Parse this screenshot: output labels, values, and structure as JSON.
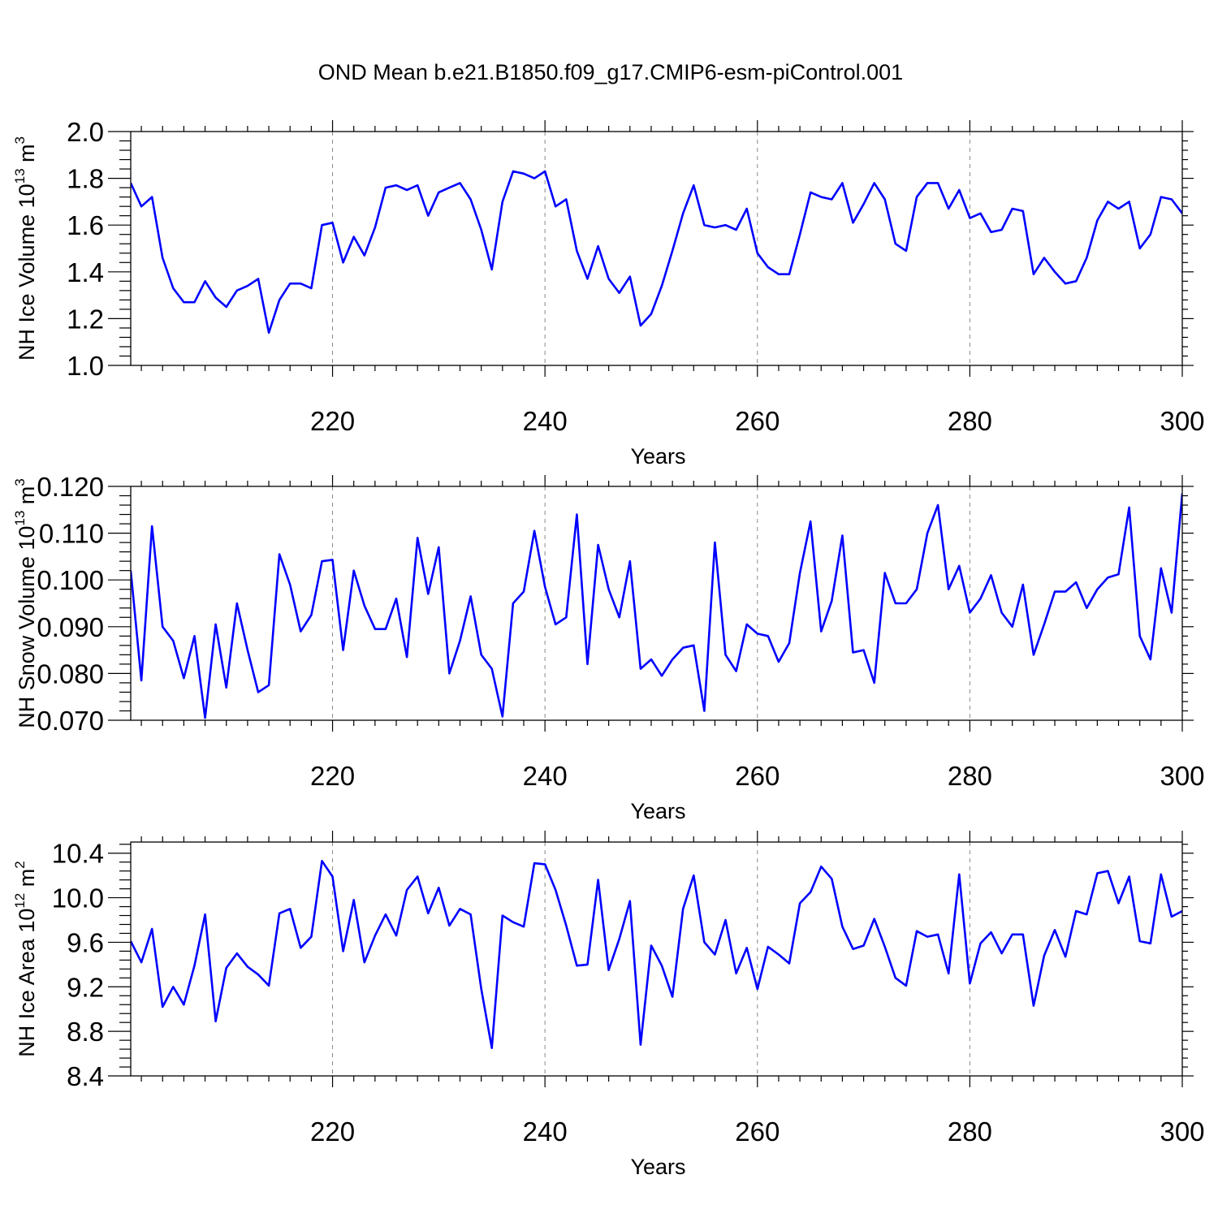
{
  "figure_title": "OND Mean b.e21.B1850.f09_g17.CMIP6-esm-piControl.001",
  "colors": {
    "line": "#0000ff",
    "grid": "#888888",
    "axis": "#000000"
  },
  "chart_data": [
    {
      "type": "line",
      "title": "OND Mean b.e21.B1850.f09_g17.CMIP6-esm-piControl.001",
      "xlabel": "Years",
      "ylabel": "NH Ice Volume 10",
      "ylabel_superscript": "13",
      "ylabel_unit": " m",
      "ylabel_unit_superscript": "3",
      "xlim": [
        201,
        300
      ],
      "ylim": [
        1.0,
        2.0
      ],
      "yticks": [
        "1.0",
        "1.2",
        "1.4",
        "1.6",
        "1.8",
        "2.0"
      ],
      "xticks": [
        "220",
        "240",
        "260",
        "280",
        "300"
      ],
      "x_start": 201,
      "series": [
        {
          "name": "NH Ice Volume",
          "values": [
            1.78,
            1.68,
            1.72,
            1.46,
            1.33,
            1.27,
            1.27,
            1.36,
            1.29,
            1.25,
            1.32,
            1.34,
            1.37,
            1.14,
            1.28,
            1.35,
            1.35,
            1.33,
            1.6,
            1.61,
            1.44,
            1.55,
            1.47,
            1.59,
            1.76,
            1.77,
            1.75,
            1.77,
            1.64,
            1.74,
            1.76,
            1.78,
            1.71,
            1.58,
            1.41,
            1.7,
            1.83,
            1.82,
            1.8,
            1.83,
            1.68,
            1.71,
            1.49,
            1.37,
            1.51,
            1.37,
            1.31,
            1.38,
            1.17,
            1.22,
            1.34,
            1.49,
            1.65,
            1.77,
            1.6,
            1.59,
            1.6,
            1.58,
            1.67,
            1.48,
            1.42,
            1.39,
            1.39,
            1.56,
            1.74,
            1.72,
            1.71,
            1.78,
            1.61,
            1.69,
            1.78,
            1.71,
            1.52,
            1.49,
            1.72,
            1.78,
            1.78,
            1.67,
            1.75,
            1.63,
            1.65,
            1.57,
            1.58,
            1.67,
            1.66,
            1.39,
            1.46,
            1.4,
            1.35,
            1.36,
            1.46,
            1.62,
            1.7,
            1.67,
            1.7,
            1.5,
            1.56,
            1.72,
            1.71,
            1.65
          ]
        }
      ]
    },
    {
      "type": "line",
      "xlabel": "Years",
      "ylabel": "NH Snow Volume 10",
      "ylabel_superscript": "13",
      "ylabel_unit": " m",
      "ylabel_unit_superscript": "3",
      "xlim": [
        201,
        300
      ],
      "ylim": [
        0.07,
        0.12
      ],
      "yticks": [
        "0.070",
        "0.080",
        "0.090",
        "0.100",
        "0.110",
        "0.120"
      ],
      "xticks": [
        "220",
        "240",
        "260",
        "280",
        "300"
      ],
      "x_start": 201,
      "series": [
        {
          "name": "NH Snow Volume",
          "values": [
            0.102,
            0.0785,
            0.1115,
            0.09,
            0.087,
            0.079,
            0.088,
            0.0705,
            0.0905,
            0.077,
            0.095,
            0.085,
            0.076,
            0.0775,
            0.1055,
            0.099,
            0.089,
            0.0925,
            0.104,
            0.1043,
            0.085,
            0.102,
            0.0945,
            0.0895,
            0.0895,
            0.096,
            0.0835,
            0.109,
            0.097,
            0.107,
            0.08,
            0.087,
            0.0965,
            0.084,
            0.081,
            0.0708,
            0.095,
            0.0975,
            0.1105,
            0.0985,
            0.0905,
            0.092,
            0.114,
            0.082,
            0.1075,
            0.098,
            0.092,
            0.104,
            0.081,
            0.083,
            0.0795,
            0.083,
            0.0855,
            0.086,
            0.072,
            0.108,
            0.084,
            0.0805,
            0.0905,
            0.0885,
            0.088,
            0.0825,
            0.0865,
            0.1015,
            0.1125,
            0.089,
            0.0955,
            0.1095,
            0.0845,
            0.085,
            0.078,
            0.1015,
            0.095,
            0.095,
            0.098,
            0.11,
            0.116,
            0.098,
            0.103,
            0.093,
            0.096,
            0.101,
            0.093,
            0.09,
            0.099,
            0.084,
            0.0905,
            0.0975,
            0.0975,
            0.0995,
            0.094,
            0.098,
            0.1005,
            0.1012,
            0.1155,
            0.088,
            0.083,
            0.1025,
            0.093,
            0.1185
          ]
        }
      ]
    },
    {
      "type": "line",
      "xlabel": "Years",
      "ylabel": "NH Ice Area 10",
      "ylabel_superscript": "12",
      "ylabel_unit": " m",
      "ylabel_unit_superscript": "2",
      "xlim": [
        201,
        300
      ],
      "ylim": [
        8.4,
        10.5
      ],
      "yticks": [
        "8.4",
        "8.8",
        "9.2",
        "9.6",
        "10.0",
        "10.4"
      ],
      "xticks": [
        "220",
        "240",
        "260",
        "280",
        "300"
      ],
      "x_start": 201,
      "series": [
        {
          "name": "NH Ice Area",
          "values": [
            9.61,
            9.42,
            9.72,
            9.02,
            9.2,
            9.04,
            9.39,
            9.85,
            8.89,
            9.37,
            9.5,
            9.38,
            9.31,
            9.21,
            9.86,
            9.9,
            9.55,
            9.65,
            10.33,
            10.19,
            9.52,
            9.98,
            9.42,
            9.66,
            9.85,
            9.66,
            10.07,
            10.19,
            9.86,
            10.09,
            9.75,
            9.9,
            9.85,
            9.18,
            8.65,
            9.84,
            9.78,
            9.74,
            10.31,
            10.3,
            10.07,
            9.75,
            9.39,
            9.4,
            10.16,
            9.35,
            9.63,
            9.97,
            8.68,
            9.57,
            9.39,
            9.11,
            9.9,
            10.2,
            9.6,
            9.49,
            9.8,
            9.32,
            9.55,
            9.18,
            9.56,
            9.49,
            9.41,
            9.95,
            10.05,
            10.28,
            10.17,
            9.74,
            9.54,
            9.57,
            9.81,
            9.56,
            9.28,
            9.21,
            9.7,
            9.65,
            9.67,
            9.32,
            10.21,
            9.23,
            9.59,
            9.69,
            9.5,
            9.67,
            9.67,
            9.03,
            9.48,
            9.71,
            9.47,
            9.88,
            9.85,
            10.22,
            10.24,
            9.95,
            10.19,
            9.61,
            9.59,
            10.21,
            9.83,
            9.88
          ]
        }
      ]
    }
  ]
}
